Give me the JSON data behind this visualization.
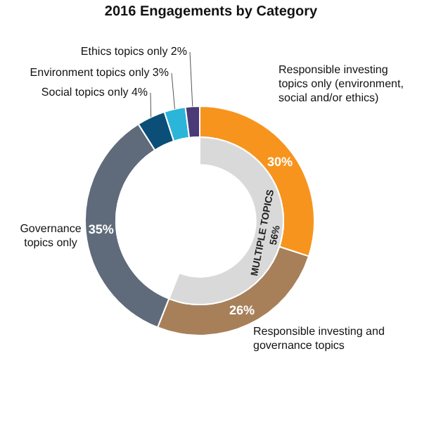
{
  "chart_data": [
    {
      "type": "donut",
      "title": "2016 Engagements by Category",
      "categories": [
        "Responsible investing topics only (environment, social and/or ethics)",
        "Responsible investing and governance topics",
        "Governance topics only",
        "Social topics only 4%",
        "Environment topics only 3%",
        "Ethics topics only 2%"
      ],
      "values": [
        30,
        26,
        35,
        4,
        3,
        2
      ],
      "colors": [
        "#f7941d",
        "#a7805a",
        "#5f6b7a",
        "#0b4f79",
        "#2bb5d8",
        "#4b3a78"
      ],
      "value_labels": [
        "30%",
        "26%",
        "35%",
        null,
        null,
        null
      ],
      "legend": false
    },
    {
      "type": "donut",
      "categories": [
        "MULTIPLE TOPICS",
        null
      ],
      "values": [
        56,
        44
      ],
      "colors": [
        "#d9d9d9",
        "#ffffff"
      ],
      "value_labels": [
        "56%",
        null
      ],
      "legend": false
    }
  ]
}
